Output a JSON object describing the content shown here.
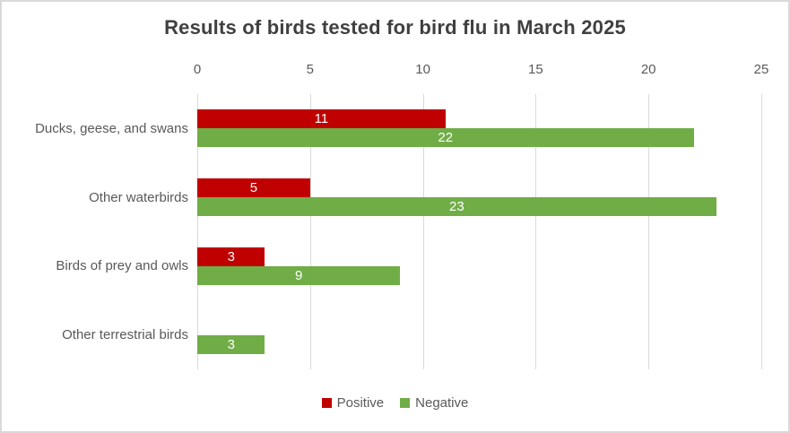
{
  "window": {
    "background": "#FFFFFF",
    "border_color": "#D9D9D9"
  },
  "chart_data": {
    "type": "bar",
    "orientation": "horizontal",
    "title": "Results of birds tested for bird flu in March 2025",
    "categories": [
      "Ducks, geese, and swans",
      "Other waterbirds",
      "Birds of prey and owls",
      "Other terrestrial birds"
    ],
    "series": [
      {
        "name": "Positive",
        "color": "#C00000",
        "values": [
          11,
          5,
          3,
          0
        ]
      },
      {
        "name": "Negative",
        "color": "#70AD47",
        "values": [
          22,
          23,
          9,
          3
        ]
      }
    ],
    "xlim": [
      0,
      25
    ],
    "xticks": [
      0,
      5,
      10,
      15,
      20,
      25
    ],
    "axis_label_position": "top",
    "grid": true,
    "gridline_color": "#D9D9D9",
    "value_labels": "inside-center",
    "value_label_color": "#FFFFFF",
    "title_color": "#404040",
    "text_color": "#595959",
    "legend_position": "bottom"
  }
}
